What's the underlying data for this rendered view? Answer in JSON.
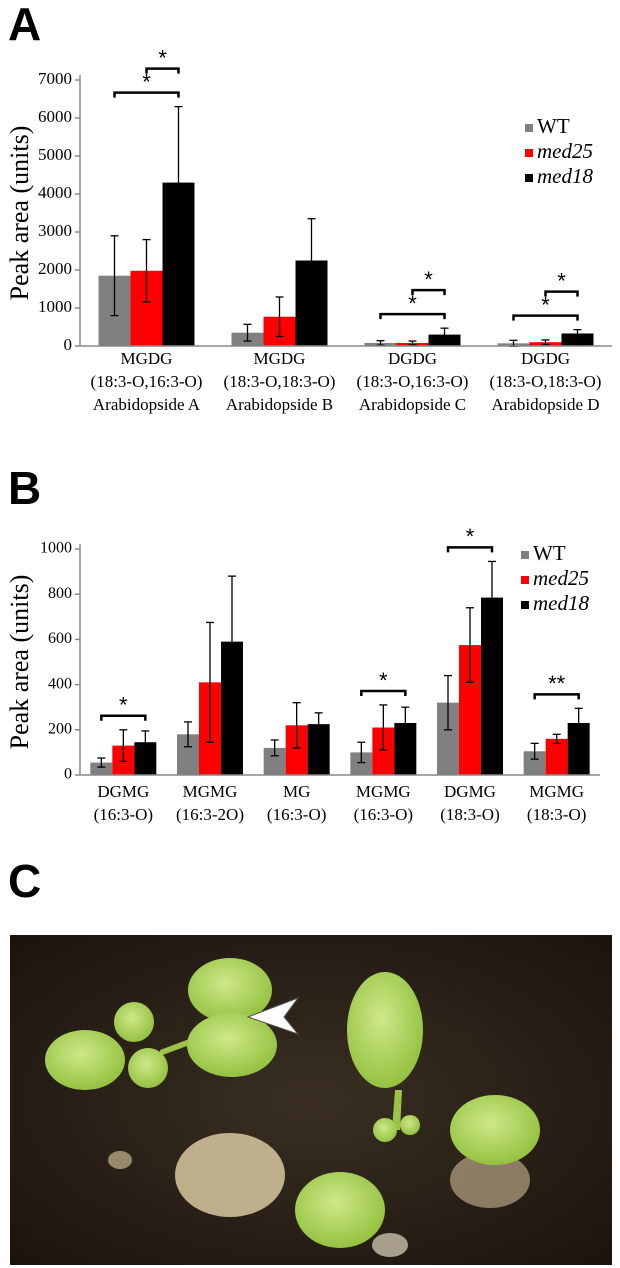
{
  "panel_labels": [
    "A",
    "B",
    "C"
  ],
  "chart_data": [
    {
      "type": "bar",
      "y_label": "Peak area (units)",
      "categories": [
        [
          "MGDG",
          "(18:3-O,16:3-O)",
          "Arabidopside A"
        ],
        [
          "MGDG",
          "(18:3-O,18:3-O)",
          "Arabidopside B"
        ],
        [
          "DGDG",
          "(18:3-O,16:3-O)",
          "Arabidopside C"
        ],
        [
          "DGDG",
          "(18:3-O,18:3-O)",
          "Arabidopside D"
        ]
      ],
      "series": [
        {
          "name": "WT",
          "color": "#808080",
          "italic": false,
          "values": [
            1850,
            350,
            80,
            70
          ],
          "errors": [
            1050,
            220,
            60,
            80
          ]
        },
        {
          "name": "med25",
          "color": "#ff0000",
          "italic": true,
          "values": [
            1980,
            770,
            80,
            100
          ],
          "errors": [
            820,
            520,
            50,
            60
          ]
        },
        {
          "name": "med18",
          "color": "#000000",
          "italic": true,
          "values": [
            4300,
            2250,
            300,
            330
          ],
          "errors": [
            2000,
            1100,
            170,
            100
          ]
        }
      ],
      "ylim": [
        0,
        7000
      ],
      "yticks": [
        0,
        1000,
        2000,
        3000,
        4000,
        5000,
        6000,
        7000
      ],
      "legend": "upper right",
      "annotations": [
        {
          "category": 0,
          "series": [
            0,
            2
          ],
          "label": "*"
        },
        {
          "category": 0,
          "series": [
            1,
            2
          ],
          "label": "*"
        },
        {
          "category": 2,
          "series": [
            0,
            2
          ],
          "label": "*"
        },
        {
          "category": 2,
          "series": [
            1,
            2
          ],
          "label": "*"
        },
        {
          "category": 3,
          "series": [
            0,
            2
          ],
          "label": "*"
        },
        {
          "category": 3,
          "series": [
            1,
            2
          ],
          "label": "*"
        }
      ]
    },
    {
      "type": "bar",
      "y_label": "Peak area (units)",
      "categories": [
        [
          "DGMG",
          "(16:3-O)"
        ],
        [
          "MGMG",
          "(16:3-2O)"
        ],
        [
          "MG",
          "(16:3-O)"
        ],
        [
          "MGMG",
          "(16:3-O)"
        ],
        [
          "DGMG",
          "(18:3-O)"
        ],
        [
          "MGMG",
          "(18:3-O)"
        ]
      ],
      "series": [
        {
          "name": "WT",
          "color": "#808080",
          "italic": false,
          "values": [
            55,
            180,
            120,
            100,
            320,
            105
          ],
          "errors": [
            20,
            55,
            35,
            45,
            120,
            35
          ]
        },
        {
          "name": "med25",
          "color": "#ff0000",
          "italic": true,
          "values": [
            130,
            410,
            220,
            210,
            575,
            160
          ],
          "errors": [
            70,
            265,
            100,
            100,
            165,
            20
          ]
        },
        {
          "name": "med18",
          "color": "#000000",
          "italic": true,
          "values": [
            145,
            590,
            225,
            230,
            785,
            230
          ],
          "errors": [
            50,
            290,
            50,
            70,
            160,
            65
          ]
        }
      ],
      "ylim": [
        0,
        1000
      ],
      "yticks": [
        0,
        200,
        400,
        600,
        800,
        1000
      ],
      "legend": "upper right",
      "annotations": [
        {
          "category": 0,
          "series": [
            0,
            2
          ],
          "label": "*"
        },
        {
          "category": 3,
          "series": [
            0,
            2
          ],
          "label": "*"
        },
        {
          "category": 4,
          "series": [
            0,
            2
          ],
          "label": "*"
        },
        {
          "category": 5,
          "series": [
            0,
            2
          ],
          "label": "**"
        }
      ]
    }
  ]
}
